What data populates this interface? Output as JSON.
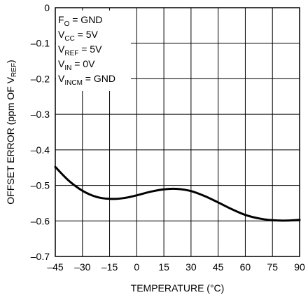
{
  "chart_data": {
    "type": "line",
    "title": "",
    "xlabel": "TEMPERATURE (°C)",
    "ylabel": "OFFSET ERROR (ppm OF V",
    "ylabel_sub": "REF",
    "ylabel_end": ")",
    "xlim": [
      -45,
      90
    ],
    "ylim": [
      -0.7,
      0
    ],
    "grid": true,
    "x_ticks": [
      -45,
      -30,
      -15,
      0,
      15,
      30,
      45,
      60,
      75,
      90
    ],
    "x_tick_labels": [
      "–45",
      "–30",
      "–15",
      "0",
      "15",
      "30",
      "45",
      "60",
      "75",
      "90"
    ],
    "y_ticks": [
      0,
      -0.1,
      -0.2,
      -0.3,
      -0.4,
      -0.5,
      -0.6,
      -0.7
    ],
    "y_tick_labels": [
      "0",
      "–0.1",
      "–0.2",
      "–0.3",
      "–0.4",
      "–0.5",
      "–0.6",
      "–0.7"
    ],
    "conditions": [
      {
        "main": "F",
        "sub": "O",
        "rest": " = GND"
      },
      {
        "main": "V",
        "sub": "CC",
        "rest": " = 5V"
      },
      {
        "main": "V",
        "sub": "REF",
        "rest": " = 5V"
      },
      {
        "main": "V",
        "sub": "IN",
        "rest": " = 0V"
      },
      {
        "main": "V",
        "sub": "INCM",
        "rest": " = GND"
      }
    ],
    "series": [
      {
        "x": [
          -45,
          -37.5,
          -30,
          -22.5,
          -15,
          -7.5,
          0,
          7.5,
          15,
          22.5,
          30,
          37.5,
          45,
          52.5,
          60,
          67.5,
          75,
          82.5,
          90
        ],
        "y": [
          -0.448,
          -0.487,
          -0.515,
          -0.532,
          -0.538,
          -0.536,
          -0.528,
          -0.518,
          -0.511,
          -0.51,
          -0.516,
          -0.53,
          -0.548,
          -0.567,
          -0.583,
          -0.593,
          -0.598,
          -0.599,
          -0.597
        ]
      }
    ]
  }
}
